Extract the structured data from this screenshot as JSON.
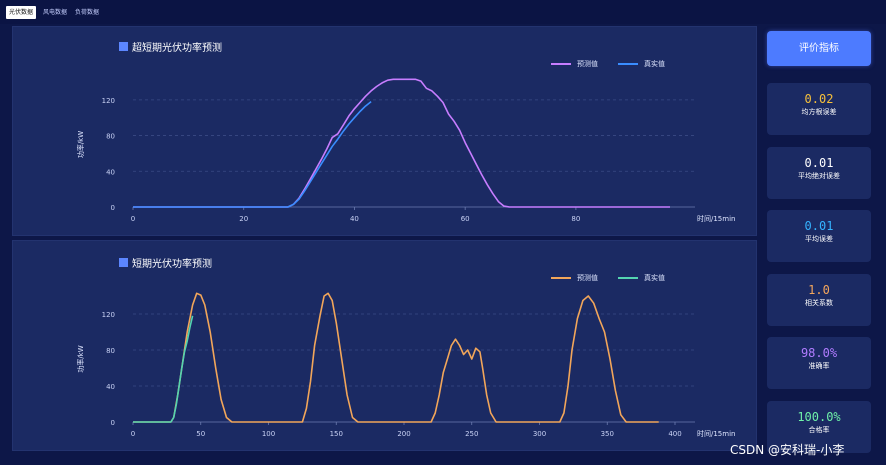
{
  "tabs": [
    {
      "label": "光伏数据",
      "active": true
    },
    {
      "label": "风电数据",
      "active": false
    },
    {
      "label": "负荷数据",
      "active": false
    }
  ],
  "sidebar": {
    "eval_button": "评价指标",
    "metrics": [
      {
        "value": "0.02",
        "label": "均方根误差",
        "color": "#f6c03b"
      },
      {
        "value": "0.01",
        "label": "平均绝对误差",
        "color": "#ffffff"
      },
      {
        "value": "0.01",
        "label": "平均误差",
        "color": "#35b3ff"
      },
      {
        "value": "1.0",
        "label": "相关系数",
        "color": "#f4a65c"
      },
      {
        "value": "98.0%",
        "label": "准确率",
        "color": "#b07cff"
      },
      {
        "value": "100.0%",
        "label": "合格率",
        "color": "#6ff2a9"
      }
    ]
  },
  "watermark": "CSDN @安科瑞-小李",
  "chart_data": [
    {
      "type": "line",
      "title": "超短期光伏功率预测",
      "xlabel": "时间/15min",
      "ylabel": "功率/kW",
      "xlim": [
        0,
        97
      ],
      "ylim": [
        0,
        140
      ],
      "xticks": [
        0,
        20,
        40,
        60,
        80
      ],
      "yticks": [
        0,
        40,
        80,
        120
      ],
      "grid": "horizontal dashed",
      "legend_position": "top-right",
      "series": [
        {
          "name": "预测值",
          "color": "#c77dff",
          "x": [
            0,
            28,
            29,
            30,
            31,
            32,
            33,
            34,
            35,
            36,
            37,
            38,
            39,
            40,
            41,
            42,
            43,
            44,
            45,
            46,
            47,
            48,
            49,
            50,
            51,
            52,
            53,
            54,
            55,
            56,
            57,
            58,
            59,
            60,
            61,
            62,
            63,
            64,
            65,
            66,
            67,
            68,
            69,
            70,
            97
          ],
          "values": [
            0,
            0,
            3,
            10,
            20,
            31,
            42,
            53,
            65,
            78,
            82,
            92,
            102,
            110,
            117,
            124,
            130,
            135,
            139,
            142,
            143,
            143,
            143,
            143,
            143,
            141,
            133,
            130,
            124,
            117,
            104,
            96,
            86,
            72,
            60,
            48,
            36,
            25,
            15,
            6,
            1,
            0,
            0,
            0,
            0
          ]
        },
        {
          "name": "真实值",
          "color": "#3a8dff",
          "x": [
            0,
            28,
            29,
            30,
            31,
            32,
            33,
            34,
            35,
            36,
            37,
            38,
            39,
            40,
            41,
            42,
            43
          ],
          "values": [
            0,
            0,
            3,
            9,
            18,
            28,
            38,
            48,
            58,
            68,
            76,
            85,
            93,
            100,
            107,
            113,
            118
          ]
        }
      ]
    },
    {
      "type": "line",
      "title": "短期光伏功率预测",
      "xlabel": "时间/15min",
      "ylabel": "功率/kW",
      "xlim": [
        0,
        400
      ],
      "ylim": [
        0,
        140
      ],
      "xticks": [
        0,
        50,
        100,
        150,
        200,
        250,
        300,
        350,
        400
      ],
      "yticks": [
        0,
        40,
        80,
        120
      ],
      "grid": "horizontal dashed",
      "legend_position": "top-right",
      "series": [
        {
          "name": "预测值",
          "color": "#f2a65a",
          "x": [
            0,
            28,
            30,
            33,
            36,
            40,
            44,
            47,
            50,
            53,
            57,
            61,
            65,
            69,
            73,
            125,
            128,
            131,
            134,
            138,
            141,
            144,
            147,
            150,
            154,
            158,
            162,
            166,
            220,
            223,
            226,
            229,
            232,
            235,
            238,
            241,
            244,
            247,
            250,
            253,
            256,
            258,
            261,
            264,
            268,
            315,
            318,
            321,
            324,
            328,
            332,
            336,
            340,
            344,
            348,
            352,
            356,
            360,
            364,
            388
          ],
          "values": [
            0,
            0,
            5,
            30,
            60,
            100,
            130,
            143,
            141,
            130,
            100,
            60,
            25,
            5,
            0,
            0,
            15,
            45,
            85,
            118,
            140,
            143,
            135,
            110,
            70,
            30,
            5,
            0,
            0,
            10,
            30,
            55,
            70,
            85,
            92,
            85,
            75,
            80,
            70,
            82,
            78,
            60,
            30,
            10,
            0,
            0,
            10,
            40,
            80,
            115,
            135,
            140,
            132,
            115,
            100,
            70,
            35,
            8,
            0,
            0
          ]
        },
        {
          "name": "真实值",
          "color": "#54d4b0",
          "x": [
            0,
            28,
            30,
            32,
            34,
            36,
            38,
            40,
            42,
            44
          ],
          "values": [
            0,
            0,
            5,
            20,
            40,
            60,
            78,
            90,
            105,
            118
          ]
        }
      ]
    }
  ]
}
